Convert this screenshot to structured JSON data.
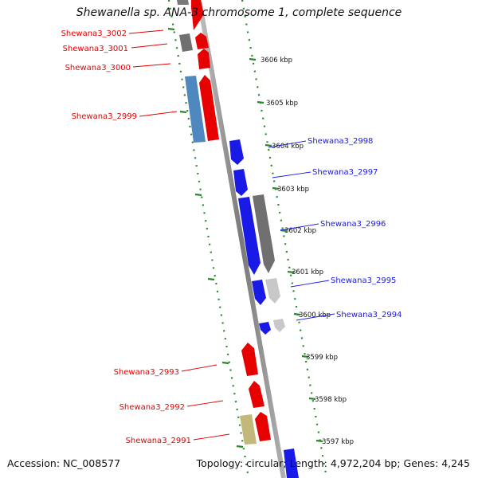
{
  "title": "Shewanella sp. ANA-3 chromosome 1, complete sequence",
  "footer": {
    "accession": "Accession: NC_008577",
    "summary": "Topology: circular; Length: 4,972,204 bp; Genes: 4,245"
  },
  "colors": {
    "reverse_strand": "#e60000",
    "forward_strand": "#1a1ae6",
    "gray": "#707070",
    "light_gray": "#c8c8c8",
    "steel_blue": "#4f87bf",
    "khaki": "#c2b87a",
    "ruler": "#2a8a2a",
    "axis": "#888888"
  },
  "ticks": [
    "3606 kbp",
    "3605 kbp",
    "3604 kbp",
    "3603 kbp",
    "3602 kbp",
    "3601 kbp",
    "3600 kbp",
    "3599 kbp",
    "3598 kbp",
    "3597 kbp"
  ],
  "gene_labels": {
    "left": [
      "Shewana3_3002",
      "Shewana3_3001",
      "Shewana3_3000",
      "Shewana3_2999",
      "Shewana3_2993",
      "Shewana3_2992",
      "Shewana3_2991"
    ],
    "right": [
      "Shewana3_2998",
      "Shewana3_2997",
      "Shewana3_2996",
      "Shewana3_2995",
      "Shewana3_2994"
    ]
  }
}
